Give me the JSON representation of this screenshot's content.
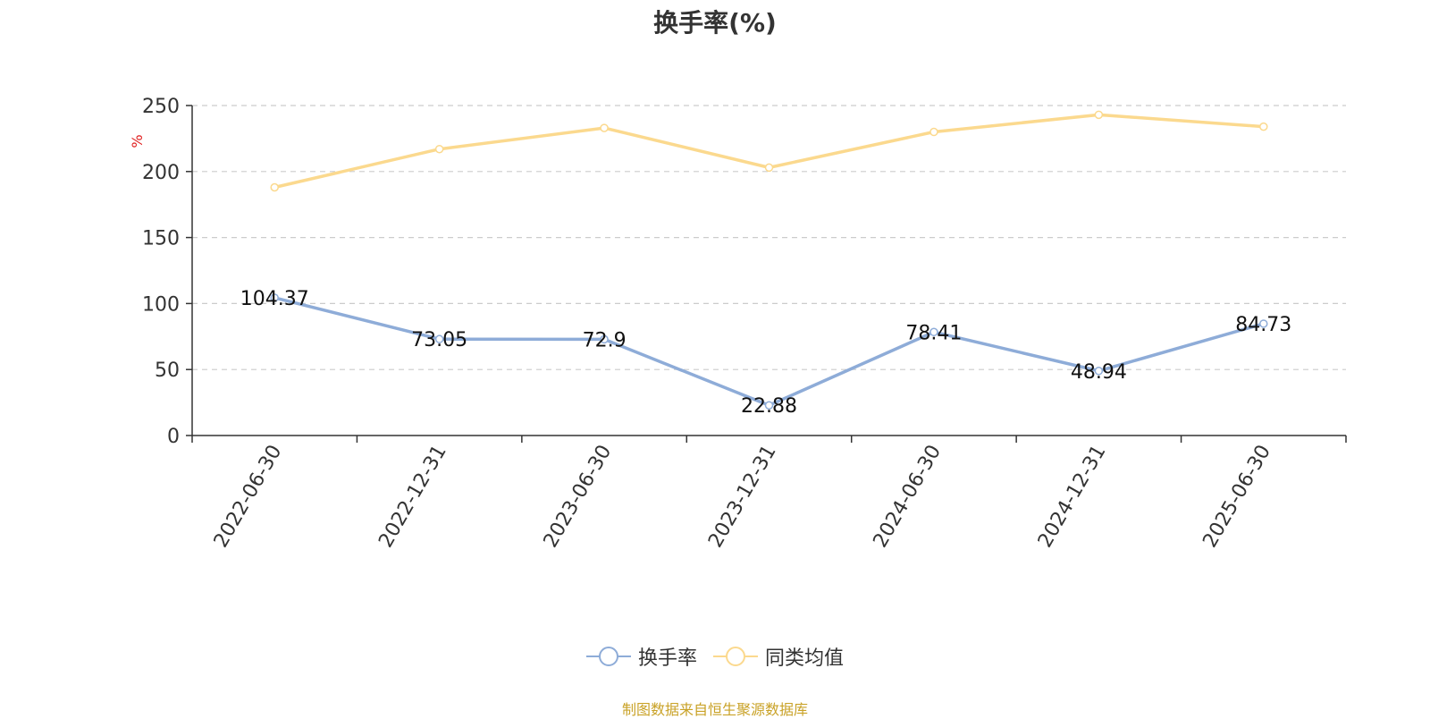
{
  "chart_data": {
    "type": "line",
    "title": "换手率(%)",
    "ylabel": "%",
    "categories": [
      "2022-06-30",
      "2022-12-31",
      "2023-06-30",
      "2023-12-31",
      "2024-06-30",
      "2024-12-31",
      "2025-06-30"
    ],
    "y_ticks": [
      "0",
      "50",
      "100",
      "150",
      "200",
      "250"
    ],
    "ylim": [
      0,
      250
    ],
    "grid": true,
    "legend_position": "bottom",
    "series": [
      {
        "name": "换手率",
        "color": "#8eacd8",
        "values": [
          104.37,
          73.05,
          72.9,
          22.88,
          78.41,
          48.94,
          84.73
        ],
        "value_labels": [
          "104.37",
          "73.05",
          "72.9",
          "22.88",
          "78.41",
          "48.94",
          "84.73"
        ]
      },
      {
        "name": "同类均值",
        "color": "#fbd98e",
        "values": [
          188,
          217,
          233,
          203,
          230,
          243,
          234
        ]
      }
    ]
  },
  "source_note": "制图数据来自恒生聚源数据库"
}
